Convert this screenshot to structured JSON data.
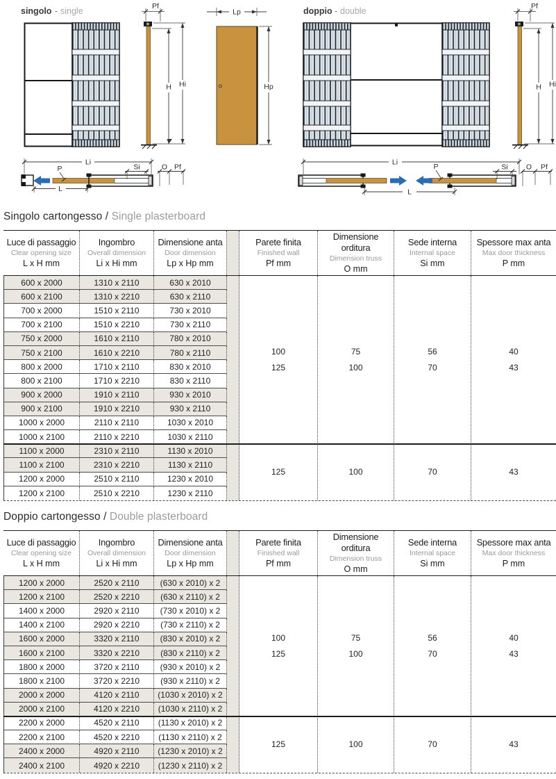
{
  "diagram": {
    "single": {
      "label_it": "singolo",
      "sep": "-",
      "label_en": "single"
    },
    "double": {
      "label_it": "doppio",
      "sep": "-",
      "label_en": "double"
    },
    "dims": {
      "pf": "Pf",
      "h": "H",
      "hi": "Hi",
      "lp": "Lp",
      "hp": "Hp",
      "li": "Li",
      "p": "P",
      "si": "Si",
      "o": "O",
      "l": "L"
    }
  },
  "colors": {
    "door": "#c8923f",
    "arrow": "#2a6db3",
    "row_shade": "#eae7e1",
    "gap_strip": "#e9e6e0"
  },
  "tables": [
    {
      "title_it": "Singolo cartongesso /",
      "title_en": "Single plasterboard",
      "columns": [
        {
          "it": "Luce di passaggio",
          "en": "Clear opening size",
          "code": "L x H mm"
        },
        {
          "it": "Ingombro",
          "en": "Overall dimension",
          "code": "Li x Hi mm"
        },
        {
          "it": "Dimensione anta",
          "en": "Door dimension",
          "code": "Lp x Hp mm"
        },
        {
          "it": "Parete finita",
          "en": "Finished wall",
          "code": "Pf mm"
        },
        {
          "it": "Dimensione orditura",
          "en": "Dimension truss",
          "code": "O mm"
        },
        {
          "it": "Sede interna",
          "en": "Internal space",
          "code": "Si mm"
        },
        {
          "it": "Spessore max anta",
          "en": "Max door thickness",
          "code": "P mm"
        }
      ],
      "groups": [
        {
          "rows": [
            [
              "600 x 2000",
              "1310 x 2110",
              "630 x 2010"
            ],
            [
              "600 x 2100",
              "1310 x 2210",
              "630 x 2110"
            ],
            [
              "700 x 2000",
              "1510 x 2110",
              "730 x 2010"
            ],
            [
              "700 x 2100",
              "1510 x 2210",
              "730 x 2110"
            ],
            [
              "750 x 2000",
              "1610 x 2110",
              "780 x 2010"
            ],
            [
              "750 x 2100",
              "1610 x 2210",
              "780 x 2110"
            ],
            [
              "800 x 2000",
              "1710 x 2110",
              "830 x 2010"
            ],
            [
              "800 x 2100",
              "1710 x 2210",
              "830 x 2110"
            ],
            [
              "900 x 2000",
              "1910 x 2110",
              "930 x 2010"
            ],
            [
              "900 x 2100",
              "1910 x 2210",
              "930 x 2110"
            ],
            [
              "1000 x 2000",
              "2110 x 2110",
              "1030 x 2010"
            ],
            [
              "1000 x 2100",
              "2110 x 2210",
              "1030 x 2110"
            ]
          ],
          "pf": [
            "100",
            "125"
          ],
          "o": [
            "75",
            "100"
          ],
          "si": [
            "56",
            "70"
          ],
          "p": [
            "40",
            "43"
          ]
        },
        {
          "rows": [
            [
              "1100 x 2000",
              "2310 x 2110",
              "1130 x 2010"
            ],
            [
              "1100 x 2100",
              "2310 x 2210",
              "1130 x 2110"
            ],
            [
              "1200 x 2000",
              "2510 x 2110",
              "1230 x 2010"
            ],
            [
              "1200 x 2100",
              "2510 x 2210",
              "1230 x 2110"
            ]
          ],
          "pf": [
            "125"
          ],
          "o": [
            "100"
          ],
          "si": [
            "70"
          ],
          "p": [
            "43"
          ]
        }
      ]
    },
    {
      "title_it": "Doppio cartongesso /",
      "title_en": "Double plasterboard",
      "columns": [
        {
          "it": "Luce di passaggio",
          "en": "Clear opening size",
          "code": "L x H mm"
        },
        {
          "it": "Ingombro",
          "en": "Overall dimension",
          "code": "Li x Hi mm"
        },
        {
          "it": "Dimensione anta",
          "en": "Door dimension",
          "code": "Lp x Hp mm"
        },
        {
          "it": "Parete finita",
          "en": "Finished wall",
          "code": "Pf mm"
        },
        {
          "it": "Dimensione orditura",
          "en": "Dimension truss",
          "code": "O mm"
        },
        {
          "it": "Sede interna",
          "en": "Internal space",
          "code": "Si mm"
        },
        {
          "it": "Spessore max anta",
          "en": "Max door thickness",
          "code": "P mm"
        }
      ],
      "groups": [
        {
          "rows": [
            [
              "1200 x 2000",
              "2520 x 2110",
              "(630 x 2010) x 2"
            ],
            [
              "1200 x 2100",
              "2520 x 2210",
              "(630 x 2110) x 2"
            ],
            [
              "1400 x 2000",
              "2920 x 2110",
              "(730 x 2010) x 2"
            ],
            [
              "1400 x 2100",
              "2920 x 2210",
              "(730 x 2110) x 2"
            ],
            [
              "1600 x 2000",
              "3320 x 2110",
              "(830 x 2010) x 2"
            ],
            [
              "1600 x 2100",
              "3320 x 2210",
              "(830 x 2110) x 2"
            ],
            [
              "1800 x 2000",
              "3720 x 2110",
              "(930 x 2010) x 2"
            ],
            [
              "1800 x 2100",
              "3720 x 2210",
              "(930 x 2110) x 2"
            ],
            [
              "2000 x 2000",
              "4120 x 2110",
              "(1030 x 2010) x 2"
            ],
            [
              "2000 x 2100",
              "4120 x 2210",
              "(1030 x 2110) x 2"
            ]
          ],
          "pf": [
            "100",
            "125"
          ],
          "o": [
            "75",
            "100"
          ],
          "si": [
            "56",
            "70"
          ],
          "p": [
            "40",
            "43"
          ]
        },
        {
          "rows": [
            [
              "2200 x 2000",
              "4520 x 2110",
              "(1130 x 2010) x 2"
            ],
            [
              "2200 x 2100",
              "4520 x 2210",
              "(1130 x 2110) x 2"
            ],
            [
              "2400 x 2000",
              "4920 x 2110",
              "(1230 x 2010) x 2"
            ],
            [
              "2400 x 2100",
              "4920 x 2210",
              "(1230 x 2110) x 2"
            ]
          ],
          "pf": [
            "125"
          ],
          "o": [
            "100"
          ],
          "si": [
            "70"
          ],
          "p": [
            "43"
          ]
        }
      ]
    }
  ]
}
